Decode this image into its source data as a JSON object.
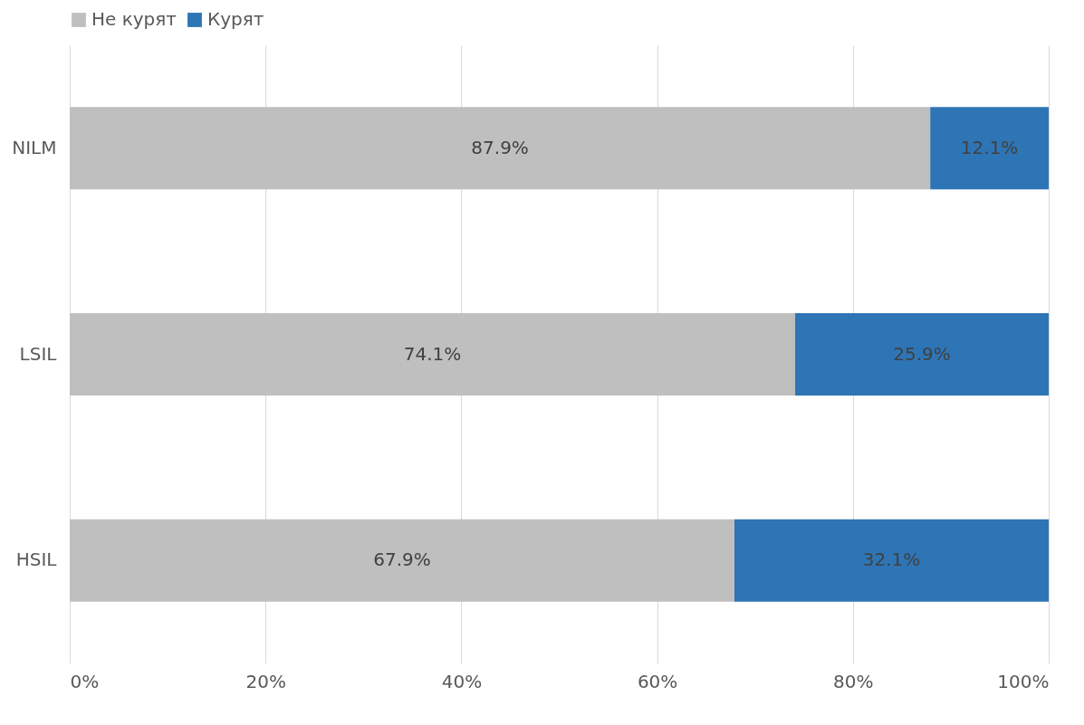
{
  "chart_data": {
    "type": "bar",
    "orientation": "horizontal",
    "stacked": true,
    "categories": [
      "NILM",
      "LSIL",
      "HSIL"
    ],
    "series": [
      {
        "name": "Не курят",
        "color": "#bfbfbf",
        "values": [
          87.9,
          74.1,
          67.9
        ],
        "value_labels": [
          "87.9%",
          "74.1%",
          "67.9%"
        ]
      },
      {
        "name": "Курят",
        "color": "#2e75b6",
        "values": [
          12.1,
          25.9,
          32.1
        ],
        "value_labels": [
          "12.1%",
          "25.9%",
          "32.1%"
        ]
      }
    ],
    "xlim": [
      0,
      100
    ],
    "xticks": [
      {
        "value": 0,
        "label": "0%"
      },
      {
        "value": 20,
        "label": "20%"
      },
      {
        "value": 40,
        "label": "40%"
      },
      {
        "value": 60,
        "label": "60%"
      },
      {
        "value": 80,
        "label": "80%"
      },
      {
        "value": 100,
        "label": "100%"
      }
    ],
    "grid": "x",
    "legend": "top"
  }
}
